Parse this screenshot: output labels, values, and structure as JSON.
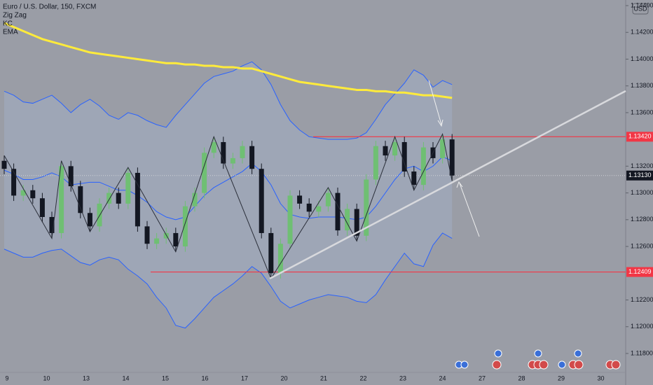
{
  "chart_data": {
    "type": "candlestick",
    "title": "Euro / U.S. Dollar, 150, FXCM",
    "indicators": [
      "Zig Zag",
      "KC",
      "EMA"
    ],
    "currency": "USD",
    "x_labels": [
      "9",
      "10",
      "13",
      "14",
      "15",
      "16",
      "17",
      "20",
      "21",
      "22",
      "23",
      "24",
      "27",
      "28",
      "29",
      "30"
    ],
    "open": [
      1.1324,
      1.1318,
      1.1298,
      1.1302,
      1.1296,
      1.1282,
      1.127,
      1.132,
      1.1305,
      1.1285,
      1.1275,
      1.1292,
      1.13,
      1.1292,
      1.1315,
      1.1275,
      1.1262,
      1.1266,
      1.127,
      1.126,
      1.129,
      1.13,
      1.133,
      1.1338,
      1.1322,
      1.1326,
      1.1335,
      1.1318,
      1.127,
      1.124,
      1.1262,
      1.1298,
      1.1292,
      1.1286,
      1.129,
      1.13,
      1.1272,
      1.1288,
      1.1268,
      1.131,
      1.1335,
      1.1328,
      1.1338,
      1.1316,
      1.1306,
      1.1334,
      1.1326,
      1.134
    ],
    "high": [
      1.1328,
      1.1322,
      1.1306,
      1.1306,
      1.13,
      1.1286,
      1.1324,
      1.1324,
      1.1309,
      1.1289,
      1.1296,
      1.1304,
      1.1304,
      1.1319,
      1.1319,
      1.1279,
      1.127,
      1.1274,
      1.1274,
      1.1294,
      1.1304,
      1.1334,
      1.1342,
      1.1342,
      1.133,
      1.1339,
      1.1339,
      1.1322,
      1.1274,
      1.1266,
      1.1302,
      1.1302,
      1.1296,
      1.1294,
      1.1304,
      1.1304,
      1.1292,
      1.1292,
      1.1314,
      1.1339,
      1.1339,
      1.1342,
      1.1342,
      1.132,
      1.1338,
      1.1338,
      1.1344,
      1.1344
    ],
    "low": [
      1.1314,
      1.1294,
      1.1294,
      1.1292,
      1.1278,
      1.1266,
      1.1266,
      1.1301,
      1.1281,
      1.1271,
      1.1271,
      1.1288,
      1.1288,
      1.1288,
      1.1271,
      1.1258,
      1.1258,
      1.1262,
      1.1256,
      1.1256,
      1.1286,
      1.1296,
      1.1326,
      1.1318,
      1.1318,
      1.1322,
      1.1314,
      1.1266,
      1.1236,
      1.1236,
      1.1258,
      1.1288,
      1.1282,
      1.1282,
      1.1286,
      1.1268,
      1.1268,
      1.1264,
      1.1264,
      1.1306,
      1.1324,
      1.1324,
      1.1312,
      1.1302,
      1.1302,
      1.1322,
      1.1322,
      1.1309
    ],
    "close": [
      1.1318,
      1.1298,
      1.1302,
      1.1296,
      1.1282,
      1.127,
      1.132,
      1.1305,
      1.1285,
      1.1275,
      1.1292,
      1.13,
      1.1292,
      1.1315,
      1.1275,
      1.1262,
      1.1266,
      1.127,
      1.126,
      1.129,
      1.13,
      1.133,
      1.1338,
      1.1322,
      1.1326,
      1.1335,
      1.1318,
      1.127,
      1.124,
      1.1262,
      1.1298,
      1.1292,
      1.1286,
      1.129,
      1.13,
      1.1272,
      1.1288,
      1.1268,
      1.131,
      1.1335,
      1.1328,
      1.1338,
      1.1316,
      1.1306,
      1.1334,
      1.1326,
      1.134,
      1.1313
    ],
    "up_color": "#6fbf73",
    "down_color": "#131722",
    "ema": {
      "color": "#ffeb3b",
      "values": [
        1.1427,
        1.1424,
        1.1421,
        1.1418,
        1.1415,
        1.1413,
        1.1411,
        1.1409,
        1.1407,
        1.1405,
        1.1404,
        1.1403,
        1.1402,
        1.1401,
        1.14,
        1.1399,
        1.1398,
        1.1397,
        1.1397,
        1.1396,
        1.1396,
        1.1395,
        1.1395,
        1.1394,
        1.1394,
        1.1393,
        1.1393,
        1.1391,
        1.1389,
        1.1387,
        1.1385,
        1.1383,
        1.1382,
        1.1381,
        1.138,
        1.1379,
        1.1378,
        1.1377,
        1.1377,
        1.1376,
        1.1376,
        1.1375,
        1.1375,
        1.1374,
        1.1373,
        1.1373,
        1.1372,
        1.1371
      ]
    },
    "kc": {
      "color": "#2962ff",
      "upper": [
        1.1376,
        1.1373,
        1.1368,
        1.1367,
        1.137,
        1.1373,
        1.1367,
        1.136,
        1.1366,
        1.137,
        1.1365,
        1.1358,
        1.1355,
        1.136,
        1.1358,
        1.1354,
        1.1351,
        1.1349,
        1.1358,
        1.1366,
        1.1374,
        1.1382,
        1.1387,
        1.1389,
        1.1391,
        1.1395,
        1.1398,
        1.1392,
        1.1381,
        1.1366,
        1.1354,
        1.1347,
        1.1342,
        1.1341,
        1.134,
        1.134,
        1.134,
        1.1341,
        1.1345,
        1.1355,
        1.1366,
        1.1374,
        1.1382,
        1.1392,
        1.1388,
        1.1379,
        1.1384,
        1.1381
      ],
      "middle": [
        1.1317,
        1.1314,
        1.131,
        1.131,
        1.1312,
        1.1315,
        1.1312,
        1.1306,
        1.1307,
        1.1308,
        1.1308,
        1.1305,
        1.1302,
        1.1302,
        1.1298,
        1.1293,
        1.1286,
        1.1282,
        1.128,
        1.1282,
        1.129,
        1.1298,
        1.1304,
        1.1308,
        1.1312,
        1.1316,
        1.1322,
        1.1316,
        1.1306,
        1.1292,
        1.1284,
        1.1282,
        1.1281,
        1.1282,
        1.1282,
        1.1282,
        1.1281,
        1.128,
        1.1282,
        1.129,
        1.13,
        1.131,
        1.1318,
        1.132,
        1.1316,
        1.132,
        1.1327,
        1.1324
      ],
      "lower": [
        1.1258,
        1.1255,
        1.1252,
        1.1252,
        1.1255,
        1.1257,
        1.1258,
        1.1253,
        1.1248,
        1.1246,
        1.125,
        1.1252,
        1.125,
        1.1243,
        1.1238,
        1.1232,
        1.1222,
        1.1214,
        1.1201,
        1.1199,
        1.1206,
        1.1214,
        1.1222,
        1.1227,
        1.1232,
        1.1238,
        1.1245,
        1.124,
        1.123,
        1.1219,
        1.1214,
        1.1217,
        1.122,
        1.1222,
        1.1224,
        1.1223,
        1.1222,
        1.1219,
        1.1218,
        1.1224,
        1.1235,
        1.1245,
        1.1255,
        1.1247,
        1.1245,
        1.1261,
        1.127,
        1.1266
      ]
    },
    "zigzag": [
      {
        "index": 0,
        "value": 1.1328
      },
      {
        "index": 5,
        "value": 1.1266
      },
      {
        "index": 6,
        "value": 1.1324
      },
      {
        "index": 9,
        "value": 1.1271
      },
      {
        "index": 13,
        "value": 1.1319
      },
      {
        "index": 18,
        "value": 1.1256
      },
      {
        "index": 22,
        "value": 1.1342
      },
      {
        "index": 28,
        "value": 1.1236
      },
      {
        "index": 34,
        "value": 1.1304
      },
      {
        "index": 37,
        "value": 1.1264
      },
      {
        "index": 41,
        "value": 1.1342
      },
      {
        "index": 43,
        "value": 1.1302
      },
      {
        "index": 46,
        "value": 1.1344
      },
      {
        "index": 47,
        "value": 1.1309
      }
    ],
    "levels": [
      {
        "value": 1.1342,
        "label": "1.13420",
        "color": "#f23645"
      },
      {
        "value": 1.12409,
        "label": "1.12409",
        "color": "#f23645"
      }
    ],
    "last_price": {
      "value": 1.1313,
      "label": "1.13130"
    },
    "ylim": [
      1.11669,
      1.14442
    ],
    "yticks": [
      {
        "value": 1.144,
        "label": "1.14400"
      },
      {
        "value": 1.142,
        "label": "1.14200"
      },
      {
        "value": 1.14,
        "label": "1.14000"
      },
      {
        "value": 1.138,
        "label": "1.13800"
      },
      {
        "value": 1.136,
        "label": "1.13600"
      },
      {
        "value": 1.132,
        "label": "1.13200"
      },
      {
        "value": 1.13,
        "label": "1.13000"
      },
      {
        "value": 1.128,
        "label": "1.12800"
      },
      {
        "value": 1.126,
        "label": "1.12600"
      },
      {
        "value": 1.122,
        "label": "1.12200"
      },
      {
        "value": 1.12,
        "label": "1.12000"
      },
      {
        "value": 1.118,
        "label": "1.11800"
      }
    ]
  }
}
